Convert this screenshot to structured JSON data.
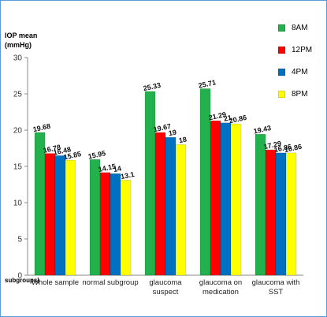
{
  "chart_data": {
    "type": "bar",
    "ylabel_lines": [
      "IOP mean",
      "(mmHg)"
    ],
    "xlabel": "subgroups)",
    "ylim": [
      0,
      30
    ],
    "yticks": [
      0,
      5,
      10,
      15,
      20,
      25,
      30
    ],
    "grid": false,
    "legend_position": "top-right",
    "categories": [
      [
        "Whole sample"
      ],
      [
        "normal subgroup"
      ],
      [
        "glaucoma",
        "suspect"
      ],
      [
        "glaucoma on",
        "medication"
      ],
      [
        "glaucoma with",
        "SST"
      ]
    ],
    "series": [
      {
        "name": "8AM",
        "color": "#22b14c",
        "values": [
          19.68,
          15.95,
          25.33,
          25.71,
          19.43
        ],
        "labels": [
          "19.68",
          "15.95",
          "25.33",
          "25.71",
          "19.43"
        ]
      },
      {
        "name": "12PM",
        "color": "#ff0000",
        "values": [
          16.78,
          14.15,
          19.67,
          21.29,
          17.29
        ],
        "labels": [
          "16.78",
          "14.15",
          "19.67",
          "21.29",
          "17.29"
        ]
      },
      {
        "name": "4PM",
        "color": "#0070c0",
        "values": [
          16.48,
          14.0,
          19.0,
          21.0,
          16.86
        ],
        "labels": [
          "16.48",
          "14",
          "19",
          "21",
          "16.86"
        ]
      },
      {
        "name": "8PM",
        "color": "#ffff00",
        "values": [
          15.85,
          13.1,
          18.0,
          20.86,
          16.86
        ],
        "labels": [
          "15.85",
          "13.1",
          "18",
          "20.86",
          "16.86"
        ]
      }
    ]
  }
}
